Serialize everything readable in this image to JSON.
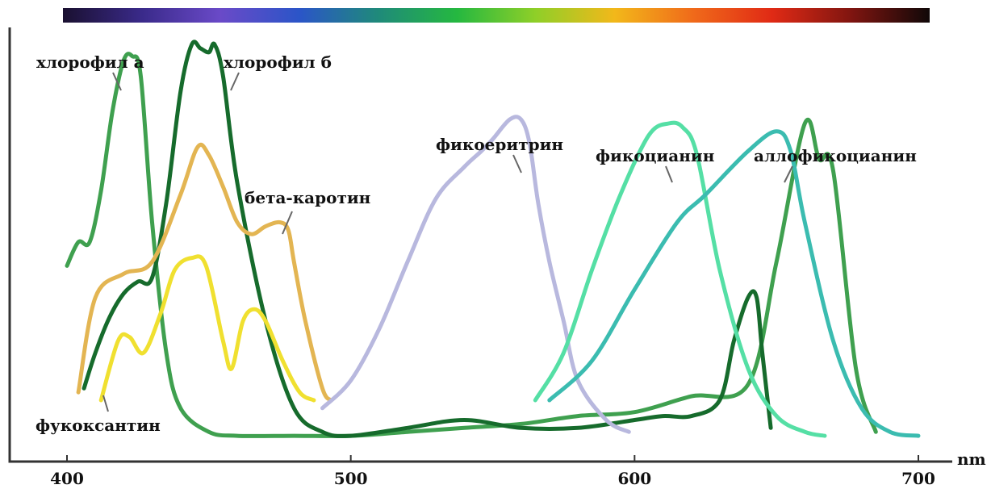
{
  "chart_data": {
    "type": "line",
    "x_unit_label": "nm",
    "x_ticks": [
      400,
      500,
      600,
      700
    ],
    "xlim": [
      400,
      700
    ],
    "ylim": [
      0,
      1
    ],
    "y_tick_labels_shown": false,
    "grid": false,
    "legend": "inline labels",
    "spectrum_bar_colors": [
      "#1a1030",
      "#3a2a8a",
      "#6a4ac8",
      "#2b55c8",
      "#1f8a7a",
      "#25b840",
      "#8fcf28",
      "#f2b81a",
      "#f06a1a",
      "#e02a15",
      "#801510",
      "#100808"
    ],
    "series": [
      {
        "name": "хлорофил а",
        "color": "#3fa04f",
        "x": [
          400,
          404,
          408,
          412,
          416,
          420,
          423,
          426,
          430,
          435,
          440,
          450,
          460,
          480,
          500,
          520,
          540,
          560,
          580,
          600,
          620,
          640,
          650,
          660,
          665,
          670,
          678,
          685
        ],
        "y": [
          0.44,
          0.5,
          0.5,
          0.63,
          0.83,
          0.96,
          0.97,
          0.92,
          0.55,
          0.22,
          0.08,
          0.02,
          0.01,
          0.01,
          0.01,
          0.02,
          0.03,
          0.04,
          0.06,
          0.07,
          0.11,
          0.14,
          0.45,
          0.8,
          0.71,
          0.68,
          0.18,
          0.02
        ]
      },
      {
        "name": "хлорофил б",
        "color": "#166b2c",
        "x": [
          406,
          410,
          415,
          420,
          425,
          430,
          435,
          440,
          444,
          447,
          450,
          452,
          455,
          460,
          470,
          480,
          490,
          500,
          520,
          540,
          560,
          580,
          600,
          610,
          620,
          630,
          635,
          640,
          643,
          645,
          648
        ],
        "y": [
          0.13,
          0.22,
          0.31,
          0.37,
          0.4,
          0.41,
          0.6,
          0.88,
          1.0,
          0.99,
          0.98,
          1.0,
          0.92,
          0.65,
          0.3,
          0.08,
          0.02,
          0.01,
          0.03,
          0.05,
          0.03,
          0.03,
          0.05,
          0.06,
          0.06,
          0.1,
          0.25,
          0.36,
          0.36,
          0.22,
          0.03
        ]
      },
      {
        "name": "бета-каротин",
        "color": "#e3b552",
        "x": [
          404,
          410,
          420,
          430,
          440,
          446,
          450,
          455,
          460,
          465,
          470,
          475,
          478,
          480,
          484,
          490,
          493
        ],
        "y": [
          0.12,
          0.36,
          0.42,
          0.45,
          0.62,
          0.74,
          0.72,
          0.64,
          0.55,
          0.52,
          0.54,
          0.55,
          0.53,
          0.45,
          0.3,
          0.13,
          0.1
        ]
      },
      {
        "name": "фукоксантин",
        "color": "#f0e030",
        "x": [
          412,
          418,
          422,
          427,
          433,
          438,
          444,
          449,
          455,
          458,
          462,
          466,
          470,
          476,
          482,
          487
        ],
        "y": [
          0.1,
          0.25,
          0.26,
          0.22,
          0.32,
          0.43,
          0.46,
          0.44,
          0.25,
          0.18,
          0.3,
          0.33,
          0.3,
          0.2,
          0.12,
          0.1
        ]
      },
      {
        "name": "фикоеритрин",
        "color": "#b8b8de",
        "x": [
          490,
          500,
          510,
          520,
          530,
          540,
          546,
          550,
          556,
          560,
          563,
          566,
          570,
          575,
          580,
          590,
          598
        ],
        "y": [
          0.08,
          0.15,
          0.28,
          0.45,
          0.61,
          0.69,
          0.73,
          0.76,
          0.81,
          0.81,
          0.75,
          0.6,
          0.45,
          0.3,
          0.15,
          0.05,
          0.02
        ]
      },
      {
        "name": "фикоцианин",
        "color": "#55dfa5",
        "x": [
          565,
          575,
          585,
          595,
          605,
          612,
          617,
          622,
          630,
          640,
          650,
          660,
          667
        ],
        "y": [
          0.1,
          0.22,
          0.43,
          0.62,
          0.77,
          0.8,
          0.79,
          0.72,
          0.43,
          0.18,
          0.06,
          0.02,
          0.01
        ]
      },
      {
        "name": "аллофикоцианин",
        "color": "#3bbcb0",
        "x": [
          570,
          585,
          600,
          615,
          625,
          640,
          650,
          655,
          660,
          670,
          680,
          690,
          700
        ],
        "y": [
          0.1,
          0.2,
          0.38,
          0.55,
          0.62,
          0.73,
          0.78,
          0.73,
          0.55,
          0.25,
          0.08,
          0.02,
          0.01
        ]
      }
    ],
    "annotations": [
      {
        "text": "хлорофил а",
        "series": "хлорофил а"
      },
      {
        "text": "хлорофил б",
        "series": "хлорофил б"
      },
      {
        "text": "бета-каротин",
        "series": "бета-каротин"
      },
      {
        "text": "фукоксантин",
        "series": "фукоксантин"
      },
      {
        "text": "фикоеритрин",
        "series": "фикоеритрин"
      },
      {
        "text": "фикоцианин",
        "series": "фикоцианин"
      },
      {
        "text": "аллофикоцианин",
        "series": "аллофикоцианин"
      }
    ]
  }
}
